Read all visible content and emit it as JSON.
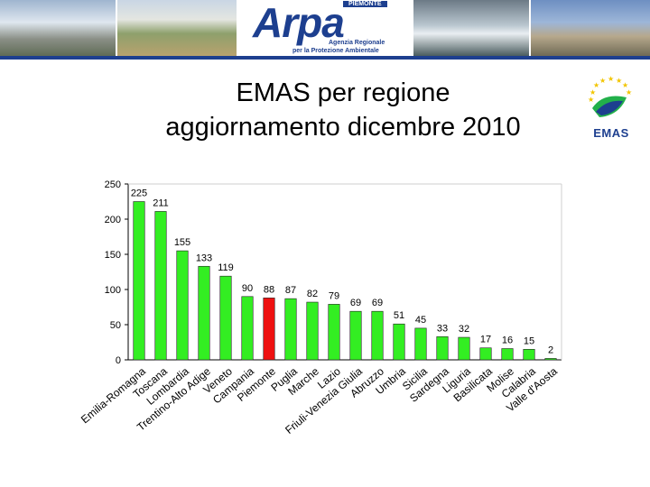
{
  "header": {
    "logo_word": "Arpa",
    "logo_tag": "PIEMONTE",
    "logo_sub1": "Agenzia Regionale",
    "logo_sub2": "per la Protezione Ambientale"
  },
  "slide": {
    "title_line1": "EMAS per regione",
    "title_line2": "aggiornamento dicembre 2010"
  },
  "emas_logo": {
    "label": "EMAS",
    "icon": "emas-eu-logo-icon",
    "star_color": "#f2c500",
    "brand_color": "#1d3f8f",
    "leaf_color": "#22b04a"
  },
  "colors": {
    "bar": "#33ee22",
    "bar_highlight": "#ee1111",
    "bar_stroke": "#222222",
    "grid": "#d8d8d8"
  },
  "chart_data": {
    "type": "bar",
    "title": "",
    "xlabel": "",
    "ylabel": "",
    "ylim": [
      0,
      250
    ],
    "yticks": [
      0,
      50,
      100,
      150,
      200,
      250
    ],
    "grid": false,
    "categories": [
      "Emilia-Romagna",
      "Toscana",
      "Lombardia",
      "Trentino-Alto Adige",
      "Veneto",
      "Campania",
      "Piemonte",
      "Puglia",
      "Marche",
      "Lazio",
      "Friuli-Venezia Giulia",
      "Abruzzo",
      "Umbria",
      "Sicilia",
      "Sardegna",
      "Liguria",
      "Basilicata",
      "Molise",
      "Calabria",
      "Valle d'Aosta"
    ],
    "values": [
      225,
      211,
      155,
      133,
      119,
      90,
      88,
      87,
      82,
      79,
      69,
      69,
      51,
      45,
      33,
      32,
      17,
      16,
      15,
      2
    ],
    "highlight_index": 6
  }
}
